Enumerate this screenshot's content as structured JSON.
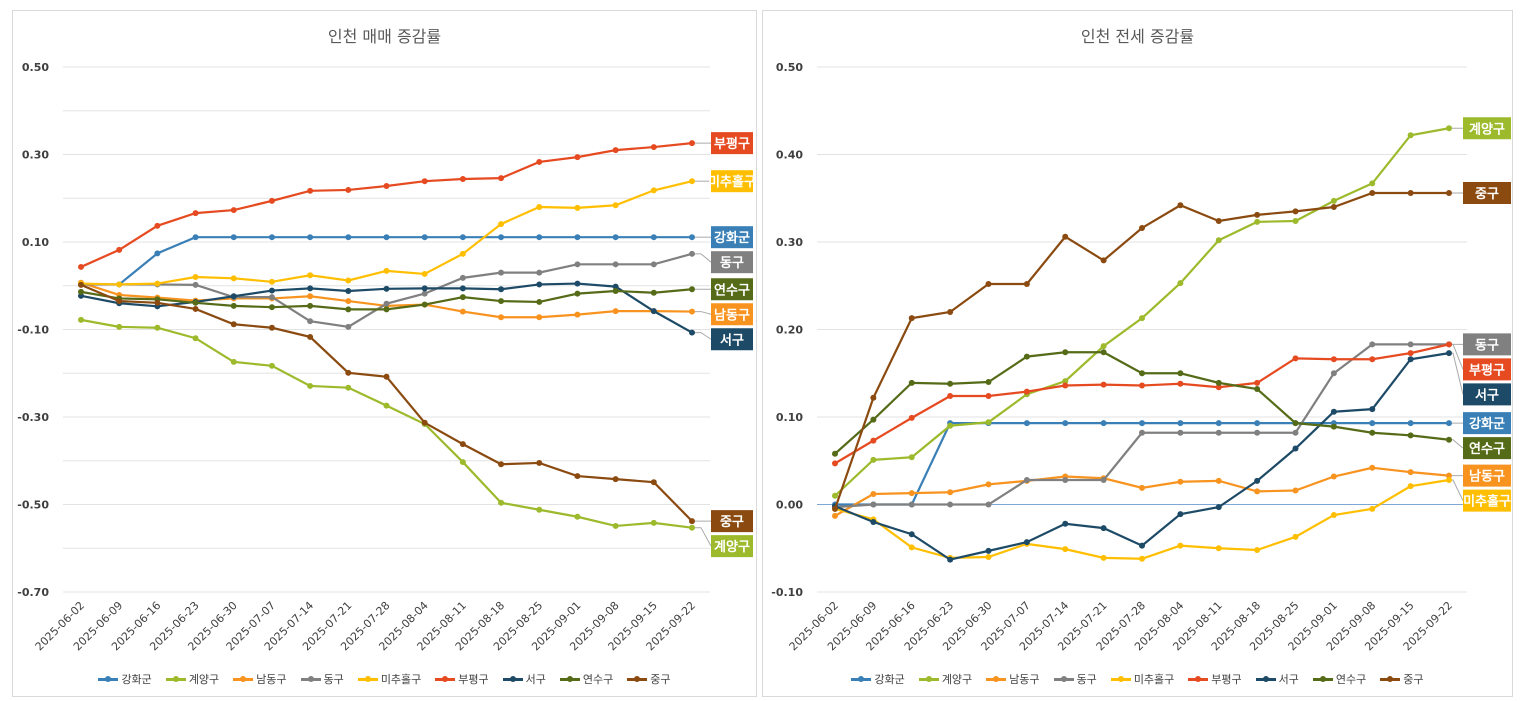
{
  "chart_data": [
    {
      "type": "line",
      "title": "인천 매매 증감률",
      "xlabel": "",
      "ylabel": "",
      "ylim": [
        -0.7,
        0.5
      ],
      "yticks": [
        "0.50",
        "0.30",
        "0.10",
        "-0.10",
        "-0.30",
        "-0.50",
        "-0.70"
      ],
      "grid": true,
      "legend": "bottom",
      "end_labels": true,
      "categories": [
        "2025-06-02",
        "2025-06-09",
        "2025-06-16",
        "2025-06-23",
        "2025-06-30",
        "2025-07-07",
        "2025-07-14",
        "2025-07-21",
        "2025-07-28",
        "2025-08-04",
        "2025-08-11",
        "2025-08-18",
        "2025-08-25",
        "2025-09-01",
        "2025-09-08",
        "2025-09-15",
        "2025-09-22"
      ],
      "series": [
        {
          "name": "강화군",
          "color": "#3a80b7",
          "values": [
            0.003,
            0.003,
            0.074,
            0.111,
            0.111,
            0.111,
            0.111,
            0.111,
            0.111,
            0.111,
            0.111,
            0.111,
            0.111,
            0.111,
            0.111,
            0.111,
            0.111
          ]
        },
        {
          "name": "계양구",
          "color": "#9cba2b",
          "values": [
            -0.078,
            -0.094,
            -0.096,
            -0.12,
            -0.174,
            -0.183,
            -0.229,
            -0.233,
            -0.274,
            -0.316,
            -0.403,
            -0.496,
            -0.512,
            -0.528,
            -0.549,
            -0.542,
            -0.553
          ]
        },
        {
          "name": "남동구",
          "color": "#f7931e",
          "values": [
            0.007,
            -0.021,
            -0.027,
            -0.034,
            -0.029,
            -0.029,
            -0.024,
            -0.035,
            -0.046,
            -0.043,
            -0.059,
            -0.072,
            -0.072,
            -0.066,
            -0.058,
            -0.058,
            -0.059
          ]
        },
        {
          "name": "동구",
          "color": "#808080",
          "values": [
            0.003,
            0.003,
            0.003,
            0.002,
            -0.026,
            -0.026,
            -0.081,
            -0.094,
            -0.041,
            -0.018,
            0.018,
            0.03,
            0.03,
            0.049,
            0.049,
            0.049,
            0.073
          ]
        },
        {
          "name": "미추홀구",
          "color": "#ffbf00",
          "values": [
            0.005,
            0.003,
            0.005,
            0.02,
            0.017,
            0.009,
            0.024,
            0.012,
            0.034,
            0.027,
            0.073,
            0.141,
            0.18,
            0.178,
            0.184,
            0.218,
            0.239
          ]
        },
        {
          "name": "부평구",
          "color": "#e64a21",
          "values": [
            0.043,
            0.082,
            0.137,
            0.166,
            0.173,
            0.194,
            0.217,
            0.219,
            0.228,
            0.239,
            0.244,
            0.246,
            0.283,
            0.294,
            0.31,
            0.317,
            0.326
          ]
        },
        {
          "name": "서구",
          "color": "#1d4a66",
          "values": [
            -0.023,
            -0.04,
            -0.047,
            -0.037,
            -0.024,
            -0.011,
            -0.006,
            -0.012,
            -0.007,
            -0.006,
            -0.006,
            -0.008,
            0.003,
            0.005,
            -0.002,
            -0.058,
            -0.107
          ]
        },
        {
          "name": "연수구",
          "color": "#566b18",
          "values": [
            -0.014,
            -0.029,
            -0.031,
            -0.039,
            -0.046,
            -0.049,
            -0.046,
            -0.054,
            -0.054,
            -0.043,
            -0.026,
            -0.035,
            -0.037,
            -0.018,
            -0.012,
            -0.016,
            -0.008
          ]
        },
        {
          "name": "중구",
          "color": "#8a4a10",
          "values": [
            0.002,
            -0.035,
            -0.039,
            -0.053,
            -0.088,
            -0.096,
            -0.117,
            -0.199,
            -0.208,
            -0.313,
            -0.362,
            -0.408,
            -0.405,
            -0.435,
            -0.442,
            -0.449,
            -0.538
          ]
        }
      ]
    },
    {
      "type": "line",
      "title": "인천 전세 증감률",
      "xlabel": "",
      "ylabel": "",
      "ylim": [
        -0.1,
        0.5
      ],
      "yticks": [
        "0.50",
        "0.40",
        "0.30",
        "0.20",
        "0.10",
        "0.00",
        "-0.10"
      ],
      "grid": true,
      "legend": "bottom",
      "end_labels": true,
      "categories": [
        "2025-06-02",
        "2025-06-09",
        "2025-06-16",
        "2025-06-23",
        "2025-06-30",
        "2025-07-07",
        "2025-07-14",
        "2025-07-21",
        "2025-07-28",
        "2025-08-04",
        "2025-08-11",
        "2025-08-18",
        "2025-08-25",
        "2025-09-01",
        "2025-09-08",
        "2025-09-15",
        "2025-09-22"
      ],
      "series": [
        {
          "name": "강화군",
          "color": "#3a80b7",
          "values": [
            0.0,
            0.0,
            0.0,
            0.093,
            0.093,
            0.093,
            0.093,
            0.093,
            0.093,
            0.093,
            0.093,
            0.093,
            0.093,
            0.093,
            0.093,
            0.093,
            0.093
          ]
        },
        {
          "name": "계양구",
          "color": "#9cba2b",
          "values": [
            0.01,
            0.051,
            0.054,
            0.09,
            0.094,
            0.126,
            0.141,
            0.181,
            0.213,
            0.253,
            0.302,
            0.323,
            0.324,
            0.347,
            0.367,
            0.422,
            0.43
          ]
        },
        {
          "name": "남동구",
          "color": "#f7931e",
          "values": [
            -0.013,
            0.012,
            0.013,
            0.014,
            0.023,
            0.027,
            0.032,
            0.03,
            0.019,
            0.026,
            0.027,
            0.015,
            0.016,
            0.032,
            0.042,
            0.037,
            0.033
          ]
        },
        {
          "name": "동구",
          "color": "#808080",
          "values": [
            -0.003,
            0.0,
            0.0,
            0.0,
            0.0,
            0.028,
            0.028,
            0.028,
            0.082,
            0.082,
            0.082,
            0.082,
            0.082,
            0.15,
            0.183,
            0.183,
            0.183
          ]
        },
        {
          "name": "미추홀구",
          "color": "#ffbf00",
          "values": [
            -0.005,
            -0.017,
            -0.049,
            -0.061,
            -0.06,
            -0.045,
            -0.051,
            -0.061,
            -0.062,
            -0.047,
            -0.05,
            -0.052,
            -0.037,
            -0.012,
            -0.005,
            0.021,
            0.028
          ]
        },
        {
          "name": "부평구",
          "color": "#e64a21",
          "values": [
            0.047,
            0.073,
            0.099,
            0.124,
            0.124,
            0.129,
            0.136,
            0.137,
            0.136,
            0.138,
            0.134,
            0.139,
            0.167,
            0.166,
            0.166,
            0.173,
            0.183
          ]
        },
        {
          "name": "서구",
          "color": "#1d4a66",
          "values": [
            -0.002,
            -0.02,
            -0.034,
            -0.063,
            -0.053,
            -0.043,
            -0.022,
            -0.027,
            -0.047,
            -0.011,
            -0.003,
            0.027,
            0.064,
            0.106,
            0.109,
            0.166,
            0.173
          ]
        },
        {
          "name": "연수구",
          "color": "#566b18",
          "values": [
            0.058,
            0.097,
            0.139,
            0.138,
            0.14,
            0.169,
            0.174,
            0.174,
            0.15,
            0.15,
            0.139,
            0.132,
            0.093,
            0.089,
            0.082,
            0.079,
            0.074
          ]
        },
        {
          "name": "중구",
          "color": "#8a4a10",
          "values": [
            -0.005,
            0.122,
            0.213,
            0.22,
            0.252,
            0.252,
            0.306,
            0.279,
            0.316,
            0.342,
            0.324,
            0.331,
            0.335,
            0.34,
            0.356,
            0.356,
            0.356
          ]
        }
      ]
    }
  ]
}
